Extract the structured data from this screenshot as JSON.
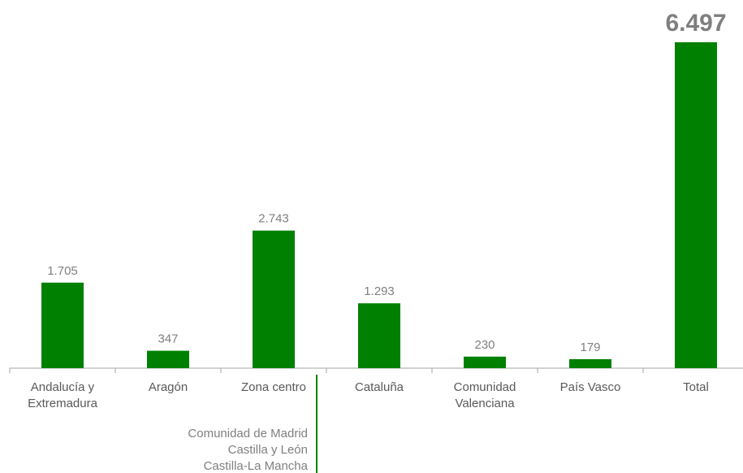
{
  "chart_data": {
    "type": "bar",
    "categories": [
      [
        "Andalucía y",
        "Extremadura"
      ],
      [
        "Aragón"
      ],
      [
        "Zona centro"
      ],
      [
        "Cataluña"
      ],
      [
        "Comunidad",
        "Valenciana"
      ],
      [
        "País Vasco"
      ],
      [
        "Total"
      ]
    ],
    "values": [
      1705,
      347,
      2743,
      1293,
      230,
      179,
      6497
    ],
    "value_labels": [
      "1.705",
      "347",
      "2.743",
      "1.293",
      "230",
      "179",
      "6.497"
    ],
    "ylim": [
      0,
      6497
    ],
    "grid": false,
    "legend": "none",
    "bar_color": "#008000",
    "zona_centro_note": [
      "Comunidad de Madrid",
      "Castilla y León",
      "Castilla-La Mancha"
    ],
    "note_line_color": "#008000"
  }
}
